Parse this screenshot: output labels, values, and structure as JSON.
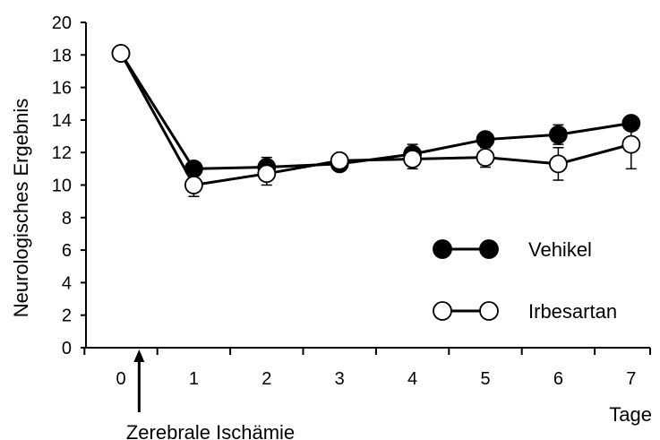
{
  "chart_data": {
    "type": "line",
    "title": "",
    "xlabel": "Tage",
    "ylabel": "Neurologisches Ergebnis",
    "x": [
      0,
      1,
      2,
      3,
      4,
      5,
      6,
      7
    ],
    "x_tick_labels": [
      "0",
      "1",
      "2",
      "3",
      "4",
      "5",
      "6",
      "7"
    ],
    "y_ticks": [
      0,
      2,
      4,
      6,
      8,
      10,
      12,
      14,
      16,
      18,
      20
    ],
    "xlim": [
      -0.5,
      7.3
    ],
    "ylim": [
      0,
      20
    ],
    "grid": false,
    "legend_position": "right",
    "annotation": "Zerebrale Ischämie",
    "annotation_x": 0.25,
    "series": [
      {
        "name": "Vehikel",
        "marker": "filled-circle",
        "color": "#000000",
        "values": [
          18.1,
          11.0,
          11.1,
          11.3,
          11.9,
          12.8,
          13.1,
          13.8
        ],
        "error": [
          0.2,
          0.2,
          0.6,
          0.2,
          0.6,
          0.3,
          0.6,
          0.3
        ]
      },
      {
        "name": "Irbesartan",
        "marker": "open-circle",
        "color": "#000000",
        "values": [
          18.1,
          10.0,
          10.7,
          11.5,
          11.6,
          11.7,
          11.3,
          12.5
        ],
        "error": [
          0.2,
          0.7,
          0.7,
          0.3,
          0.6,
          0.6,
          1.0,
          1.5
        ]
      }
    ]
  }
}
